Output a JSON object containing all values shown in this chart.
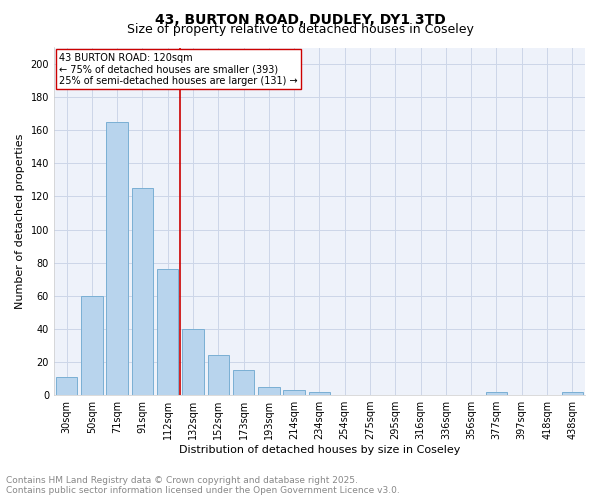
{
  "title": "43, BURTON ROAD, DUDLEY, DY1 3TD",
  "subtitle": "Size of property relative to detached houses in Coseley",
  "xlabel": "Distribution of detached houses by size in Coseley",
  "ylabel": "Number of detached properties",
  "categories": [
    "30sqm",
    "50sqm",
    "71sqm",
    "91sqm",
    "112sqm",
    "132sqm",
    "152sqm",
    "173sqm",
    "193sqm",
    "214sqm",
    "234sqm",
    "254sqm",
    "275sqm",
    "295sqm",
    "316sqm",
    "336sqm",
    "356sqm",
    "377sqm",
    "397sqm",
    "418sqm",
    "438sqm"
  ],
  "values": [
    11,
    60,
    165,
    125,
    76,
    40,
    24,
    15,
    5,
    3,
    2,
    0,
    0,
    0,
    0,
    0,
    0,
    2,
    0,
    0,
    2
  ],
  "bar_color": "#b8d4ed",
  "bar_edge_color": "#7aafd4",
  "vline_x": 4.5,
  "vline_color": "#cc0000",
  "annotation_text": "43 BURTON ROAD: 120sqm\n← 75% of detached houses are smaller (393)\n25% of semi-detached houses are larger (131) →",
  "annotation_box_color": "#ffffff",
  "annotation_box_edge": "#cc0000",
  "ylim": [
    0,
    210
  ],
  "yticks": [
    0,
    20,
    40,
    60,
    80,
    100,
    120,
    140,
    160,
    180,
    200
  ],
  "grid_color": "#ccd6e8",
  "background_color": "#eef2fa",
  "footer_line1": "Contains HM Land Registry data © Crown copyright and database right 2025.",
  "footer_line2": "Contains public sector information licensed under the Open Government Licence v3.0.",
  "title_fontsize": 10,
  "subtitle_fontsize": 9,
  "axis_label_fontsize": 8,
  "tick_fontsize": 7,
  "annotation_fontsize": 7,
  "footer_fontsize": 6.5
}
